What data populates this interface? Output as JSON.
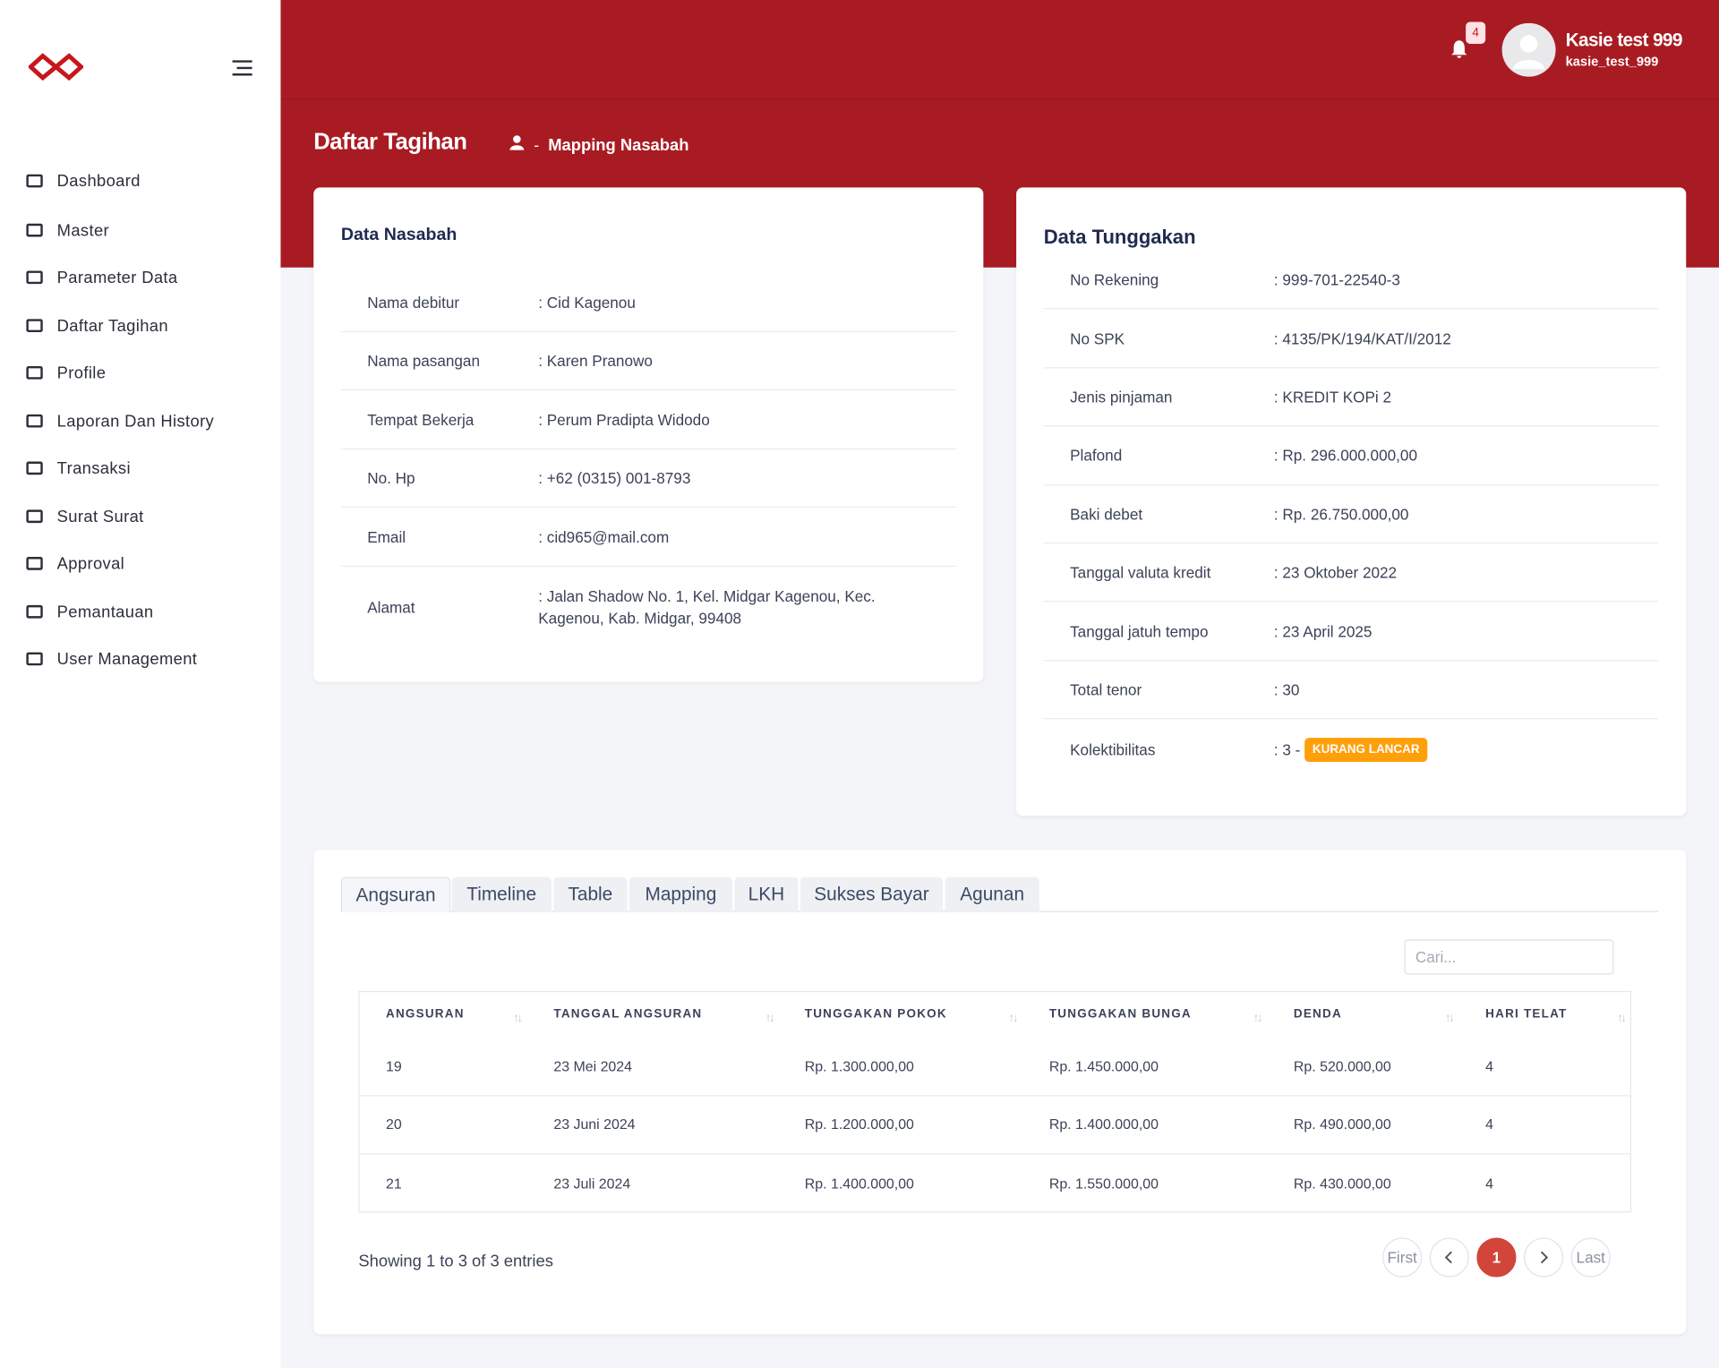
{
  "sidebar": {
    "menu": [
      "Dashboard",
      "Master",
      "Parameter Data",
      "Daftar Tagihan",
      "Profile",
      "Laporan Dan History",
      "Transaksi",
      "Surat Surat",
      "Approval",
      "Pemantauan",
      "User Management"
    ]
  },
  "header": {
    "notification_count": "4",
    "user_name": "Kasie test 999",
    "username": "kasie_test_999"
  },
  "page": {
    "title": "Daftar Tagihan",
    "breadcrumb_separator": "-",
    "breadcrumb": "Mapping Nasabah"
  },
  "data_nasabah": {
    "title": "Data Nasabah",
    "rows": [
      [
        "Nama debitur",
        ": Cid Kagenou"
      ],
      [
        "Nama pasangan",
        ": Karen Pranowo"
      ],
      [
        "Tempat Bekerja",
        ": Perum Pradipta Widodo"
      ],
      [
        "No. Hp",
        ": +62 (0315) 001-8793"
      ],
      [
        "Email",
        ": cid965@mail.com"
      ],
      [
        "Alamat",
        ": Jalan Shadow No. 1, Kel. Midgar Kagenou, Kec. Kagenou, Kab. Midgar, 99408"
      ]
    ]
  },
  "data_tunggakan": {
    "title": "Data Tunggakan",
    "rows": [
      [
        "No Rekening",
        ": 999-701-22540-3"
      ],
      [
        "No SPK",
        ": 4135/PK/194/KAT/I/2012"
      ],
      [
        "Jenis pinjaman",
        ": KREDIT KOPi 2"
      ],
      [
        "Plafond",
        ": Rp. 296.000.000,00"
      ],
      [
        "Baki debet",
        ": Rp. 26.750.000,00"
      ],
      [
        "Tanggal valuta kredit",
        ": 23 Oktober 2022"
      ],
      [
        "Tanggal jatuh tempo",
        ": 23 April 2025"
      ],
      [
        "Total tenor",
        ": 30"
      ],
      [
        "Kolektibilitas",
        ": 3 -"
      ]
    ],
    "badge": "KURANG LANCAR"
  },
  "tabs": {
    "items": [
      "Angsuran",
      "Timeline",
      "Table",
      "Mapping",
      "LKH",
      "Sukses Bayar",
      "Agunan"
    ],
    "active": "Angsuran"
  },
  "search": {
    "placeholder": "Cari..."
  },
  "table": {
    "headers": [
      "ANGSURAN",
      "TANGGAL ANGSURAN",
      "TUNGGAKAN POKOK",
      "TUNGGAKAN BUNGA",
      "DENDA",
      "HARI TELAT"
    ],
    "rows": [
      [
        "19",
        "23 Mei 2024",
        "Rp. 1.300.000,00",
        "Rp. 1.450.000,00",
        "Rp. 520.000,00",
        "4"
      ],
      [
        "20",
        "23 Juni 2024",
        "Rp. 1.200.000,00",
        "Rp. 1.400.000,00",
        "Rp. 490.000,00",
        "4"
      ],
      [
        "21",
        "23 Juli 2024",
        "Rp. 1.400.000,00",
        "Rp. 1.550.000,00",
        "Rp. 430.000,00",
        "4"
      ]
    ]
  },
  "footer": {
    "info": "Showing 1 to 3 of 3 entries",
    "pagination": {
      "first": "First",
      "current": "1",
      "last": "Last"
    }
  }
}
